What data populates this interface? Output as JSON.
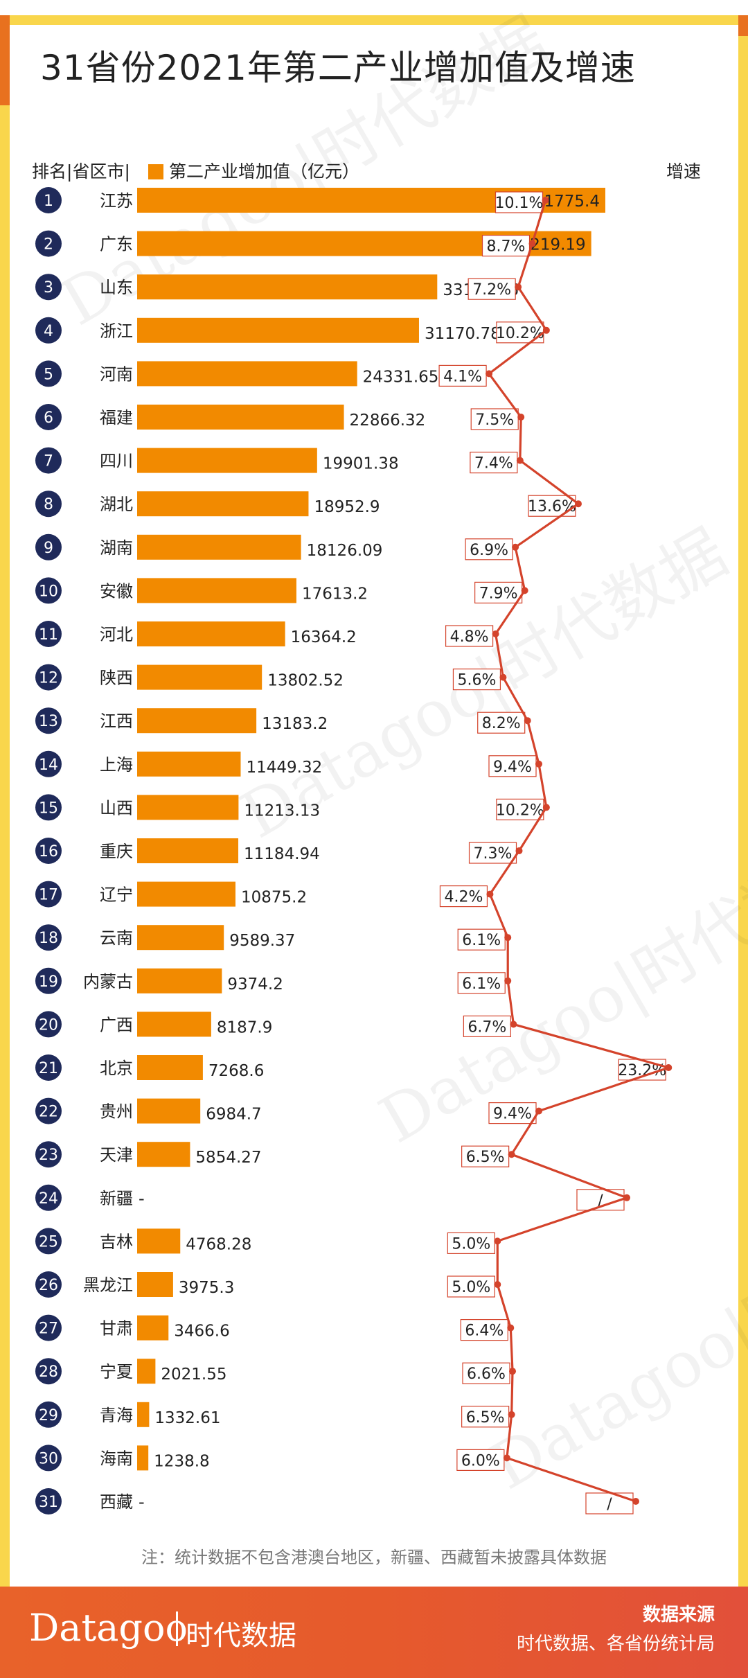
{
  "page": {
    "title": "31省份2021年第二产业增加值及增速",
    "header_rank": "排名",
    "header_region": "省区市",
    "header_sep": "|",
    "legend_label": "第二产业增加值（亿元）",
    "header_growth": "增速",
    "note": "注：统计数据不包含港澳台地区，新疆、西藏暂未披露具体数据",
    "footer_brand": "Datagoo",
    "footer_brand_cn": "时代数据",
    "footer_source_title": "数据来源",
    "footer_source_text": "时代数据、各省份统计局",
    "watermark_text": "Datagoo|时代数据"
  },
  "chart_data": {
    "type": "bar",
    "orientation": "horizontal",
    "title": "31省份2021年第二产业增加值及增速",
    "colors": {
      "bar": "#f28a00",
      "line": "#d4432b",
      "rank_circle": "#1f2a5a"
    },
    "ranks": [
      1,
      2,
      3,
      4,
      5,
      6,
      7,
      8,
      9,
      10,
      11,
      12,
      13,
      14,
      15,
      16,
      17,
      18,
      19,
      20,
      21,
      22,
      23,
      24,
      25,
      26,
      27,
      28,
      29,
      30,
      31
    ],
    "categories": [
      "江苏",
      "广东",
      "山东",
      "浙江",
      "河南",
      "福建",
      "四川",
      "湖北",
      "湖南",
      "安徽",
      "河北",
      "陕西",
      "江西",
      "上海",
      "山西",
      "重庆",
      "辽宁",
      "云南",
      "内蒙古",
      "广西",
      "北京",
      "贵州",
      "天津",
      "新疆",
      "吉林",
      "黑龙江",
      "甘肃",
      "宁夏",
      "青海",
      "海南",
      "西藏"
    ],
    "series": [
      {
        "name": "第二产业增加值（亿元）",
        "values": [
          51775.4,
          50219.19,
          33187.16,
          31170.78,
          24331.65,
          22866.32,
          19901.38,
          18952.9,
          18126.09,
          17613.2,
          16364.2,
          13802.52,
          13183.2,
          11449.32,
          11213.13,
          11184.94,
          10875.2,
          9589.37,
          9374.2,
          8187.9,
          7268.6,
          6984.7,
          5854.27,
          null,
          4768.28,
          3975.3,
          3466.6,
          2021.55,
          1332.61,
          1238.8,
          null
        ],
        "labels": [
          "51775.4",
          "50219.19",
          "33187.16",
          "31170.78",
          "24331.65",
          "22866.32",
          "19901.38",
          "18952.9",
          "18126.09",
          "17613.2",
          "16364.2",
          "13802.52",
          "13183.2",
          "11449.32",
          "11213.13",
          "11184.94",
          "10875.2",
          "9589.37",
          "9374.2",
          "8187.9",
          "7268.6",
          "6984.7",
          "5854.27",
          "-",
          "4768.28",
          "3975.3",
          "3466.6",
          "2021.55",
          "1332.61",
          "1238.8",
          "-"
        ]
      },
      {
        "name": "增速",
        "values": [
          10.1,
          8.7,
          7.2,
          10.2,
          4.1,
          7.5,
          7.4,
          13.6,
          6.9,
          7.9,
          4.8,
          5.6,
          8.2,
          9.4,
          10.2,
          7.3,
          4.2,
          6.1,
          6.1,
          6.7,
          23.2,
          9.4,
          6.5,
          null,
          5.0,
          5.0,
          6.4,
          6.6,
          6.5,
          6.0,
          null
        ],
        "labels": [
          "10.1%",
          "8.7%",
          "7.2%",
          "10.2%",
          "4.1%",
          "7.5%",
          "7.4%",
          "13.6%",
          "6.9%",
          "7.9%",
          "4.8%",
          "5.6%",
          "8.2%",
          "9.4%",
          "10.2%",
          "7.3%",
          "4.2%",
          "6.1%",
          "6.1%",
          "6.7%",
          "23.2%",
          "9.4%",
          "6.5%",
          "/",
          "5.0%",
          "5.0%",
          "6.4%",
          "6.6%",
          "6.5%",
          "6.0%",
          "/"
        ]
      }
    ]
  }
}
